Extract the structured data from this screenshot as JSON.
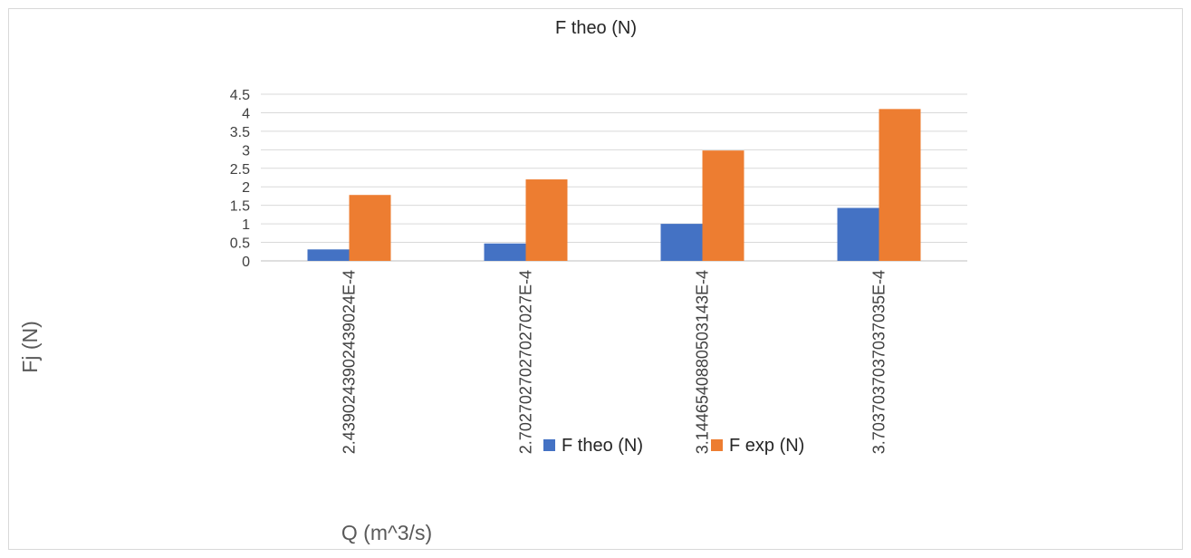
{
  "chart_data": {
    "type": "bar",
    "title": "F theo (N)",
    "xlabel": "Q (m^3/s)",
    "ylabel": "Fj (N)",
    "ylim": [
      0,
      4.5
    ],
    "yticks": [
      "0",
      "0.5",
      "1",
      "1.5",
      "2",
      "2.5",
      "3",
      "3.5",
      "4",
      "4.5"
    ],
    "categories": [
      "2.4390243902439024E-4",
      "2.7027027027027027E-4",
      "3.1446540880503143E-4",
      "3.7037037037037035E-4"
    ],
    "series": [
      {
        "name": "F theo (N)",
        "color": "#4472c4",
        "values": [
          0.31,
          0.47,
          1.0,
          1.43
        ]
      },
      {
        "name": "F exp (N)",
        "color": "#ed7d31",
        "values": [
          1.78,
          2.2,
          2.98,
          4.1
        ]
      }
    ],
    "grid": true,
    "legend": "bottom"
  }
}
